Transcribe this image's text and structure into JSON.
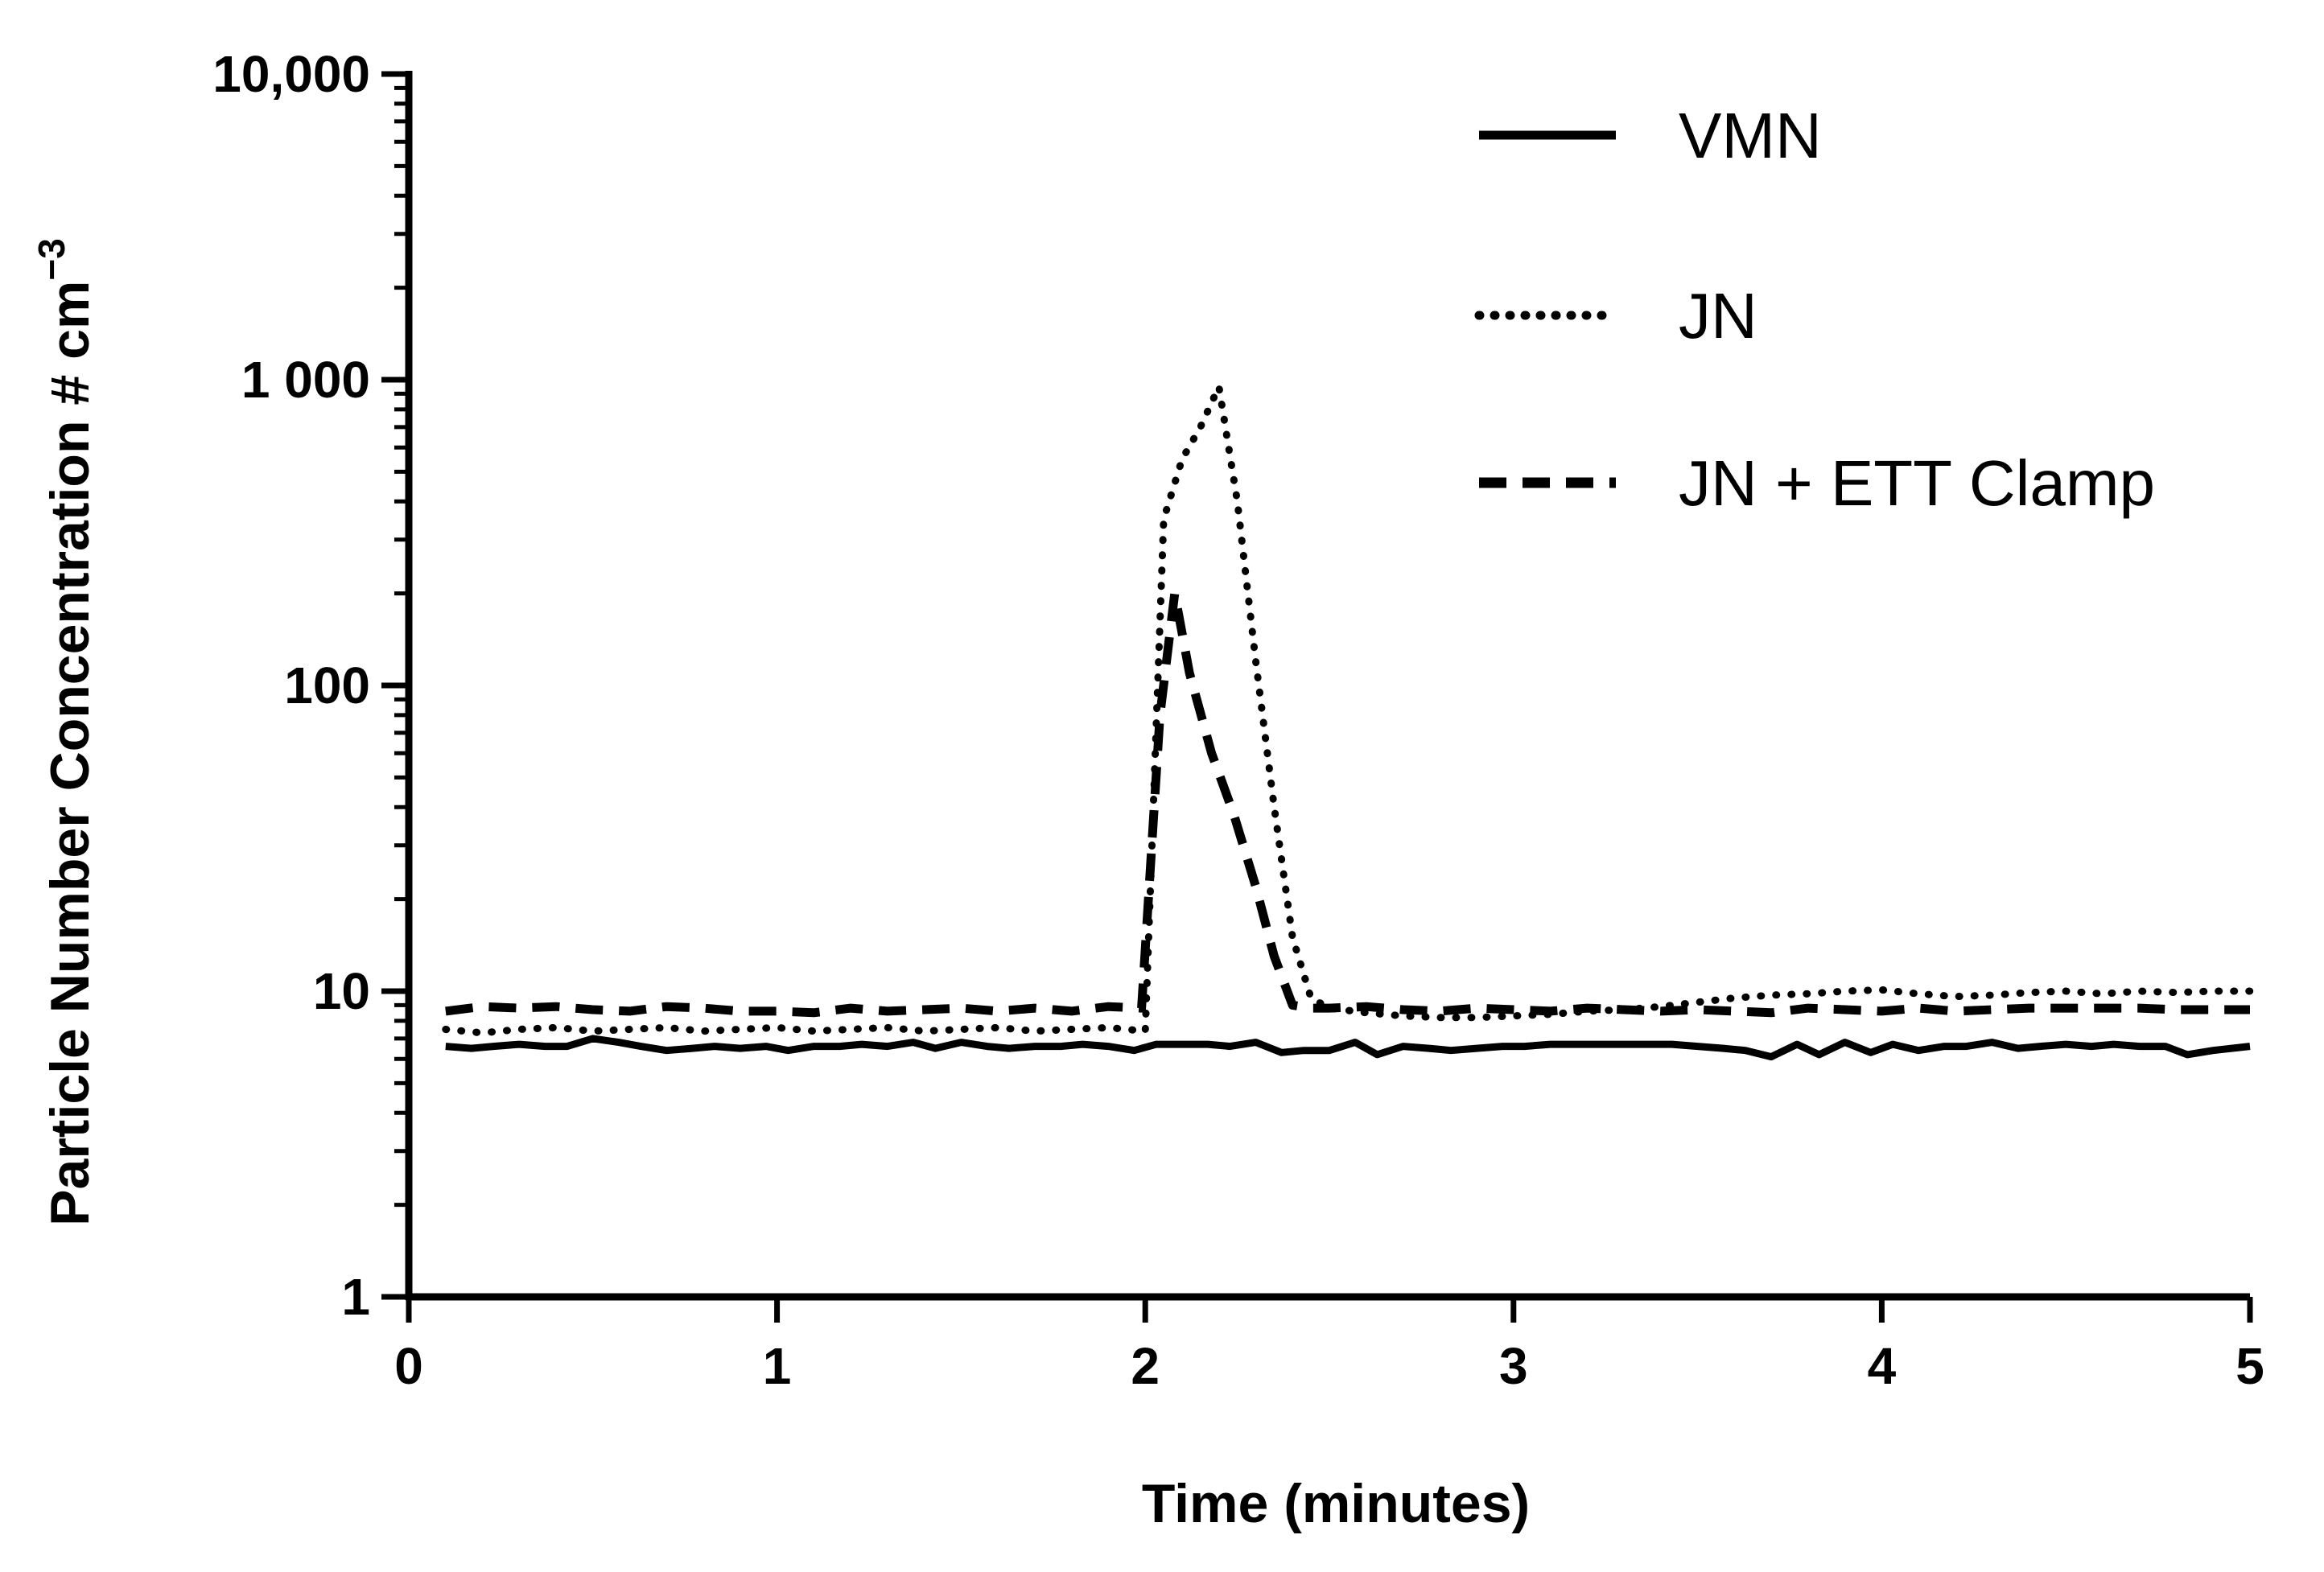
{
  "chart_data": {
    "type": "line",
    "xlabel": "Time (minutes)",
    "ylabel": "Particle Number Concentration # cm",
    "ylabel_superscript": "−3",
    "yscale": "log",
    "xlim": [
      0,
      5
    ],
    "ylim": [
      1,
      10000
    ],
    "x_ticks": [
      "0",
      "1",
      "2",
      "3",
      "4",
      "5"
    ],
    "y_ticks": [
      "1",
      "10",
      "100",
      "1 000",
      "10,000"
    ],
    "grid": false,
    "legend_position": "top-right",
    "series": [
      {
        "name": "VMN",
        "style": "solid",
        "x": [
          0.1,
          0.17,
          0.23,
          0.3,
          0.37,
          0.43,
          0.5,
          0.57,
          0.63,
          0.7,
          0.77,
          0.83,
          0.9,
          0.97,
          1.03,
          1.1,
          1.17,
          1.23,
          1.3,
          1.37,
          1.43,
          1.5,
          1.57,
          1.63,
          1.7,
          1.77,
          1.83,
          1.9,
          1.97,
          2.03,
          2.1,
          2.17,
          2.23,
          2.3,
          2.37,
          2.43,
          2.5,
          2.57,
          2.63,
          2.7,
          2.77,
          2.83,
          2.9,
          2.97,
          3.03,
          3.1,
          3.17,
          3.23,
          3.3,
          3.37,
          3.43,
          3.5,
          3.57,
          3.63,
          3.7,
          3.77,
          3.83,
          3.9,
          3.97,
          4.03,
          4.1,
          4.17,
          4.23,
          4.3,
          4.37,
          4.43,
          4.5,
          4.57,
          4.63,
          4.7,
          4.77,
          4.83,
          4.9,
          5.0
        ],
        "values": [
          6.6,
          6.5,
          6.6,
          6.7,
          6.6,
          6.6,
          7.0,
          6.8,
          6.6,
          6.4,
          6.5,
          6.6,
          6.5,
          6.6,
          6.4,
          6.6,
          6.6,
          6.7,
          6.6,
          6.8,
          6.5,
          6.8,
          6.6,
          6.5,
          6.6,
          6.6,
          6.7,
          6.6,
          6.4,
          6.7,
          6.7,
          6.7,
          6.6,
          6.8,
          6.3,
          6.4,
          6.4,
          6.8,
          6.2,
          6.6,
          6.5,
          6.4,
          6.5,
          6.6,
          6.6,
          6.7,
          6.7,
          6.7,
          6.7,
          6.7,
          6.7,
          6.6,
          6.5,
          6.4,
          6.1,
          6.7,
          6.2,
          6.8,
          6.3,
          6.7,
          6.4,
          6.6,
          6.6,
          6.8,
          6.5,
          6.6,
          6.7,
          6.6,
          6.7,
          6.6,
          6.6,
          6.2,
          6.4,
          6.6
        ]
      },
      {
        "name": "JN",
        "style": "dotted",
        "x": [
          0.1,
          0.2,
          0.3,
          0.4,
          0.5,
          0.6,
          0.7,
          0.8,
          0.9,
          1.0,
          1.1,
          1.2,
          1.3,
          1.4,
          1.5,
          1.6,
          1.7,
          1.8,
          1.9,
          2.0,
          2.05,
          2.1,
          2.15,
          2.2,
          2.25,
          2.3,
          2.35,
          2.4,
          2.45,
          2.5,
          2.6,
          2.7,
          2.8,
          2.9,
          3.0,
          3.1,
          3.2,
          3.3,
          3.4,
          3.5,
          3.6,
          3.7,
          3.8,
          3.9,
          4.0,
          4.1,
          4.2,
          4.3,
          4.4,
          4.5,
          4.6,
          4.7,
          4.8,
          4.9,
          5.0
        ],
        "values": [
          7.5,
          7.3,
          7.5,
          7.6,
          7.4,
          7.5,
          7.6,
          7.4,
          7.5,
          7.6,
          7.4,
          7.5,
          7.6,
          7.4,
          7.5,
          7.6,
          7.4,
          7.5,
          7.6,
          7.4,
          350,
          550,
          700,
          950,
          400,
          120,
          40,
          15,
          9.5,
          8.8,
          8.5,
          8.3,
          8.2,
          8.2,
          8.3,
          8.4,
          8.6,
          8.7,
          8.9,
          9.2,
          9.5,
          9.7,
          9.8,
          10.0,
          10.1,
          9.8,
          9.6,
          9.7,
          9.9,
          10.0,
          9.8,
          10.0,
          9.9,
          10.0,
          10.0
        ]
      },
      {
        "name": "JN + ETT Clamp",
        "style": "dashed",
        "x": [
          0.1,
          0.2,
          0.3,
          0.4,
          0.5,
          0.6,
          0.7,
          0.8,
          0.9,
          1.0,
          1.1,
          1.2,
          1.3,
          1.4,
          1.5,
          1.6,
          1.7,
          1.8,
          1.9,
          1.99,
          2.04,
          2.08,
          2.12,
          2.18,
          2.24,
          2.3,
          2.35,
          2.4,
          2.45,
          2.5,
          2.6,
          2.7,
          2.8,
          2.9,
          3.0,
          3.1,
          3.2,
          3.3,
          3.4,
          3.5,
          3.6,
          3.7,
          3.8,
          3.9,
          4.0,
          4.1,
          4.2,
          4.3,
          4.4,
          4.5,
          4.6,
          4.7,
          4.8,
          4.9,
          5.0
        ],
        "values": [
          8.6,
          8.9,
          8.8,
          8.9,
          8.7,
          8.6,
          8.9,
          8.8,
          8.6,
          8.6,
          8.5,
          8.8,
          8.6,
          8.7,
          8.8,
          8.6,
          8.8,
          8.6,
          8.9,
          8.8,
          80,
          200,
          110,
          60,
          38,
          22,
          13,
          9.0,
          8.8,
          8.8,
          8.9,
          8.7,
          8.6,
          8.8,
          8.7,
          8.6,
          8.8,
          8.7,
          8.6,
          8.7,
          8.6,
          8.5,
          8.8,
          8.7,
          8.6,
          8.8,
          8.6,
          8.7,
          8.8,
          8.8,
          8.8,
          8.8,
          8.7,
          8.7,
          8.7
        ]
      }
    ]
  }
}
